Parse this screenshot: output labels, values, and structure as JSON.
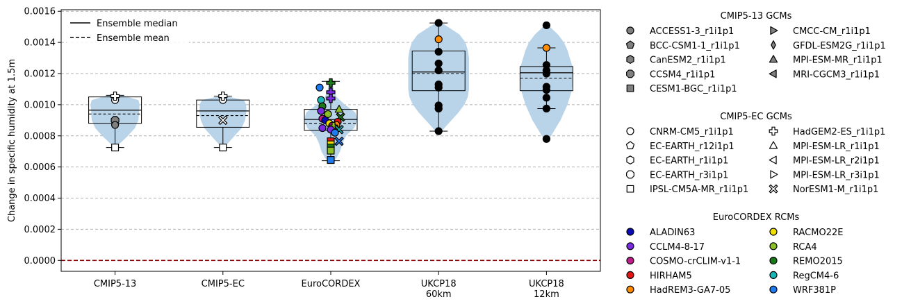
{
  "chart_data": {
    "type": "violin-box",
    "ylabel": "Change in specific humidity at 1.5m",
    "ylim": [
      -7e-05,
      0.00161
    ],
    "yticks": [
      "0.0000",
      "0.0002",
      "0.0004",
      "0.0006",
      "0.0008",
      "0.0010",
      "0.0012",
      "0.0014",
      "0.0016"
    ],
    "ytick_values": [
      0,
      0.0002,
      0.0004,
      0.0006,
      0.0008,
      0.001,
      0.0012,
      0.0014,
      0.0016
    ],
    "grid": "horizontal dashed",
    "zero_line_color": "#8b0000",
    "violin_color": "#b9d3e8",
    "categories": [
      {
        "label": [
          "CMIP5-13"
        ]
      },
      {
        "label": [
          "CMIP5-EC"
        ]
      },
      {
        "label": [
          "EuroCORDEX"
        ]
      },
      {
        "label": [
          "UKCP18",
          "60km"
        ]
      },
      {
        "label": [
          "UKCP18",
          "12km"
        ]
      }
    ],
    "groups": [
      {
        "name": "CMIP5-13",
        "box": {
          "whisker_low": 0.000725,
          "q1": 0.00088,
          "median": 0.000965,
          "q3": 0.00105,
          "whisker_high": 0.00106,
          "mean": 0.00094
        },
        "violin": [
          [
            0.00072,
            0.015
          ],
          [
            0.00075,
            0.08
          ],
          [
            0.0008,
            0.22
          ],
          [
            0.00085,
            0.34
          ],
          [
            0.0009,
            0.4
          ],
          [
            0.00095,
            0.41
          ],
          [
            0.001,
            0.42
          ],
          [
            0.00103,
            0.4
          ],
          [
            0.00106,
            0.12
          ],
          [
            0.00107,
            0.02
          ]
        ],
        "points": [
          {
            "model": "CNRM-CM5_r1i1p1",
            "marker": "circle",
            "fill": "#ffffff",
            "y": 0.00103
          },
          {
            "model": "HadGEM2-ES_r1i1p1",
            "marker": "plus",
            "fill": "#ffffff",
            "y": 0.001055
          },
          {
            "model": "CCSM4_r1i1p1",
            "marker": "octagon",
            "fill": "#808080",
            "y": 0.0009
          },
          {
            "model": "ACCESS1-3_r1i1p1",
            "marker": "circle",
            "fill": "#808080",
            "y": 0.00087
          },
          {
            "model": "IPSL-CM5A-MR_r1i1p1",
            "marker": "square",
            "fill": "#ffffff",
            "y": 0.000725
          }
        ]
      },
      {
        "name": "CMIP5-EC",
        "box": {
          "whisker_low": 0.000725,
          "q1": 0.000855,
          "median": 0.00096,
          "q3": 0.00103,
          "whisker_high": 0.001055,
          "mean": 0.00093
        },
        "violin": [
          [
            0.00072,
            0.015
          ],
          [
            0.00075,
            0.08
          ],
          [
            0.0008,
            0.2
          ],
          [
            0.00085,
            0.32
          ],
          [
            0.0009,
            0.38
          ],
          [
            0.00095,
            0.4
          ],
          [
            0.001,
            0.4
          ],
          [
            0.00103,
            0.36
          ],
          [
            0.00105,
            0.12
          ],
          [
            0.00106,
            0.02
          ]
        ],
        "points": [
          {
            "model": "CNRM-CM5_r1i1p1",
            "marker": "circle",
            "fill": "#ffffff",
            "y": 0.00103
          },
          {
            "model": "HadGEM2-ES_r1i1p1",
            "marker": "plus",
            "fill": "#ffffff",
            "y": 0.001055
          },
          {
            "model": "NorESM1-M_r1i1p1",
            "marker": "x",
            "fill": "#ffffff",
            "y": 0.0009
          },
          {
            "model": "IPSL-CM5A-MR_r1i1p1",
            "marker": "square",
            "fill": "#ffffff",
            "y": 0.000725
          }
        ]
      },
      {
        "name": "EuroCORDEX",
        "box": {
          "whisker_low": 0.00064,
          "q1": 0.000835,
          "median": 0.000905,
          "q3": 0.00097,
          "whisker_high": 0.00115,
          "mean": 0.00088
        },
        "violin": [
          [
            0.00062,
            0.02
          ],
          [
            0.00066,
            0.1
          ],
          [
            0.0007,
            0.16
          ],
          [
            0.00075,
            0.2
          ],
          [
            0.0008,
            0.26
          ],
          [
            0.00085,
            0.4
          ],
          [
            0.0009,
            0.46
          ],
          [
            0.00095,
            0.42
          ],
          [
            0.001,
            0.24
          ],
          [
            0.00105,
            0.1
          ],
          [
            0.0011,
            0.05
          ],
          [
            0.00116,
            0.02
          ]
        ],
        "points": [
          {
            "model": "WRF381P",
            "marker": "circle",
            "fill": "#1e7bf0",
            "y": 0.00111,
            "dx": -0.4
          },
          {
            "model": "REMO2015",
            "marker": "plus",
            "fill": "#1a7a1a",
            "y": 0.00114,
            "dx": 0.0
          },
          {
            "model": "MPI-ESM-LR_r1i1p1",
            "marker": "plus",
            "fill": "#7b2be2",
            "y": 0.00108,
            "dx": 0.0
          },
          {
            "model": "HadREM3-GA7-05",
            "marker": "plus",
            "fill": "#7b2be2",
            "y": 0.00104,
            "dx": 0.0
          },
          {
            "model": "RegCM4-6",
            "marker": "circle",
            "fill": "#18b8b8",
            "y": 0.00103,
            "dx": -0.35
          },
          {
            "model": "REMO2015",
            "marker": "circle",
            "fill": "#1a7a1a",
            "y": 0.00099,
            "dx": -0.3
          },
          {
            "model": "RCA4",
            "marker": "triangle",
            "fill": "#8cbf26",
            "y": 0.00097,
            "dx": 0.3
          },
          {
            "model": "CCLM4-8-17",
            "marker": "circle",
            "fill": "#7b2be2",
            "y": 0.00096,
            "dx": -0.35
          },
          {
            "model": "RCA4",
            "marker": "circle",
            "fill": "#8cbf26",
            "y": 0.00094,
            "dx": -0.1
          },
          {
            "model": "REMO2015",
            "marker": "x",
            "fill": "#1a7a1a",
            "y": 0.00092,
            "dx": 0.35
          },
          {
            "model": "COSMO-crCLIM-v1-1",
            "marker": "circle",
            "fill": "#c01c8c",
            "y": 0.00091,
            "dx": -0.3
          },
          {
            "model": "ALADIN63",
            "marker": "circle",
            "fill": "#0a0ab5",
            "y": 0.0009,
            "dx": -0.2
          },
          {
            "model": "HIRHAM5",
            "marker": "circle",
            "fill": "#e81414",
            "y": 0.00089,
            "dx": 0.25
          },
          {
            "model": "RACMO22E",
            "marker": "circle",
            "fill": "#f0e000",
            "y": 0.00088,
            "dx": -0.05
          },
          {
            "model": "HadREM3-GA7-05",
            "marker": "circle",
            "fill": "#ff8c00",
            "y": 0.00087,
            "dx": 0.2
          },
          {
            "model": "COSMO-crCLIM-v1-1",
            "marker": "circle",
            "fill": "#c01c8c",
            "y": 0.000865,
            "dx": 0.05
          },
          {
            "model": "CCLM4-8-17",
            "marker": "circle",
            "fill": "#7b2be2",
            "y": 0.00085,
            "dx": -0.3
          },
          {
            "model": "RCA4",
            "marker": "plus",
            "fill": "#8cbf26",
            "y": 0.00086,
            "dx": 0.1
          },
          {
            "model": "CCLM4-8-17",
            "marker": "circle",
            "fill": "#7b2be2",
            "y": 0.00084,
            "dx": 0.0
          },
          {
            "model": "RegCM4-6",
            "marker": "x",
            "fill": "#18b8b8",
            "y": 0.00084,
            "dx": 0.3
          },
          {
            "model": "WRF381P",
            "marker": "circle",
            "fill": "#1e7bf0",
            "y": 0.00082,
            "dx": 0.15
          },
          {
            "model": "HIRHAM5",
            "marker": "square",
            "fill": "#e81414",
            "y": 0.000765,
            "dx": 0.0
          },
          {
            "model": "WRF381P",
            "marker": "x",
            "fill": "#1e7bf0",
            "y": 0.000765,
            "dx": 0.3
          },
          {
            "model": "RACMO22E",
            "marker": "square",
            "fill": "#f0e000",
            "y": 0.000745,
            "dx": 0.0
          },
          {
            "model": "REMO2015",
            "marker": "square",
            "fill": "#1a7a1a",
            "y": 0.000725,
            "dx": 0.0
          },
          {
            "model": "RCA4",
            "marker": "square",
            "fill": "#8cbf26",
            "y": 0.000705,
            "dx": 0.0
          },
          {
            "model": "WRF381P",
            "marker": "square",
            "fill": "#1e7bf0",
            "y": 0.000645,
            "dx": 0.0
          }
        ]
      },
      {
        "name": "UKCP18 60km",
        "box": {
          "whisker_low": 0.00083,
          "q1": 0.00109,
          "median": 0.00121,
          "q3": 0.001345,
          "whisker_high": 0.001525,
          "mean": 0.0012
        },
        "violin": [
          [
            0.00081,
            0.02
          ],
          [
            0.00085,
            0.1
          ],
          [
            0.0009,
            0.22
          ],
          [
            0.00095,
            0.34
          ],
          [
            0.001,
            0.44
          ],
          [
            0.00105,
            0.5
          ],
          [
            0.0011,
            0.52
          ],
          [
            0.00115,
            0.52
          ],
          [
            0.0012,
            0.52
          ],
          [
            0.00125,
            0.52
          ],
          [
            0.0013,
            0.52
          ],
          [
            0.00135,
            0.5
          ],
          [
            0.0014,
            0.46
          ],
          [
            0.00145,
            0.36
          ],
          [
            0.0015,
            0.16
          ],
          [
            0.00153,
            0.03
          ]
        ],
        "points": [
          {
            "model": "",
            "marker": "circle",
            "fill": "#000000",
            "y": 0.001525
          },
          {
            "model": "",
            "marker": "circle",
            "fill": "#ff8c00",
            "y": 0.00142
          },
          {
            "model": "",
            "marker": "circle",
            "fill": "#000000",
            "y": 0.00134
          },
          {
            "model": "",
            "marker": "circle",
            "fill": "#000000",
            "y": 0.001265
          },
          {
            "model": "",
            "marker": "circle",
            "fill": "#000000",
            "y": 0.00122
          },
          {
            "model": "",
            "marker": "circle",
            "fill": "#000000",
            "y": 0.00113
          },
          {
            "model": "",
            "marker": "circle",
            "fill": "#000000",
            "y": 0.00111
          },
          {
            "model": "",
            "marker": "circle",
            "fill": "#000000",
            "y": 0.000995
          },
          {
            "model": "",
            "marker": "circle",
            "fill": "#000000",
            "y": 0.000975
          },
          {
            "model": "",
            "marker": "circle",
            "fill": "#000000",
            "y": 0.00083
          }
        ]
      },
      {
        "name": "UKCP18 12km",
        "box": {
          "whisker_low": 0.000975,
          "q1": 0.00109,
          "median": 0.001205,
          "q3": 0.001245,
          "whisker_high": 0.001365,
          "mean": 0.00117
        },
        "violin": [
          [
            0.00077,
            0.02
          ],
          [
            0.0008,
            0.08
          ],
          [
            0.00085,
            0.16
          ],
          [
            0.0009,
            0.24
          ],
          [
            0.00095,
            0.3
          ],
          [
            0.001,
            0.36
          ],
          [
            0.00105,
            0.4
          ],
          [
            0.0011,
            0.44
          ],
          [
            0.00115,
            0.46
          ],
          [
            0.0012,
            0.46
          ],
          [
            0.00125,
            0.44
          ],
          [
            0.0013,
            0.4
          ],
          [
            0.00135,
            0.36
          ],
          [
            0.0014,
            0.3
          ],
          [
            0.00145,
            0.2
          ],
          [
            0.0015,
            0.06
          ],
          [
            0.00152,
            0.015
          ]
        ],
        "points": [
          {
            "model": "",
            "marker": "circle",
            "fill": "#000000",
            "y": 0.00151
          },
          {
            "model": "",
            "marker": "circle",
            "fill": "#ff8c00",
            "y": 0.001365
          },
          {
            "model": "",
            "marker": "circle",
            "fill": "#000000",
            "y": 0.001255
          },
          {
            "model": "",
            "marker": "circle",
            "fill": "#000000",
            "y": 0.00122
          },
          {
            "model": "",
            "marker": "circle",
            "fill": "#000000",
            "y": 0.0012
          },
          {
            "model": "",
            "marker": "circle",
            "fill": "#000000",
            "y": 0.001115
          },
          {
            "model": "",
            "marker": "circle",
            "fill": "#000000",
            "y": 0.001095
          },
          {
            "model": "",
            "marker": "circle",
            "fill": "#000000",
            "y": 0.001045
          },
          {
            "model": "",
            "marker": "circle",
            "fill": "#000000",
            "y": 0.000975
          },
          {
            "model": "",
            "marker": "circle",
            "fill": "#000000",
            "y": 0.00078
          }
        ]
      }
    ],
    "plot_legend": [
      {
        "label": "Ensemble median",
        "style": "solid"
      },
      {
        "label": "Ensemble mean",
        "style": "dashed"
      }
    ],
    "legend_sections": [
      {
        "title": "CMIP5-13 GCMs",
        "columns": [
          [
            {
              "label": "ACCESS1-3_r1i1p1",
              "marker": "circle",
              "fill": "#808080"
            },
            {
              "label": "BCC-CSM1-1_r1i1p1",
              "marker": "pentagon",
              "fill": "#808080"
            },
            {
              "label": "CanESM2_r1i1p1",
              "marker": "hexagon",
              "fill": "#808080"
            },
            {
              "label": "CCSM4_r1i1p1",
              "marker": "octagon",
              "fill": "#808080"
            },
            {
              "label": "CESM1-BGC_r1i1p1",
              "marker": "square",
              "fill": "#808080"
            }
          ],
          [
            {
              "label": "CMCC-CM_r1i1p1",
              "marker": "triangle-right",
              "fill": "#808080"
            },
            {
              "label": "GFDL-ESM2G_r1i1p1",
              "marker": "thin-diamond",
              "fill": "#808080"
            },
            {
              "label": "MPI-ESM-MR_r1i1p1",
              "marker": "triangle",
              "fill": "#808080"
            },
            {
              "label": "MRI-CGCM3_r1i1p1",
              "marker": "triangle-left",
              "fill": "#808080"
            }
          ]
        ]
      },
      {
        "title": "CMIP5-EC GCMs",
        "columns": [
          [
            {
              "label": "CNRM-CM5_r1i1p1",
              "marker": "circle",
              "fill": "#ffffff"
            },
            {
              "label": "EC-EARTH_r12i1p1",
              "marker": "pentagon",
              "fill": "#ffffff"
            },
            {
              "label": "EC-EARTH_r1i1p1",
              "marker": "hexagon",
              "fill": "#ffffff"
            },
            {
              "label": "EC-EARTH_r3i1p1",
              "marker": "octagon",
              "fill": "#ffffff"
            },
            {
              "label": "IPSL-CM5A-MR_r1i1p1",
              "marker": "square",
              "fill": "#ffffff"
            }
          ],
          [
            {
              "label": "HadGEM2-ES_r1i1p1",
              "marker": "plus",
              "fill": "#ffffff"
            },
            {
              "label": "MPI-ESM-LR_r1i1p1",
              "marker": "triangle",
              "fill": "#ffffff"
            },
            {
              "label": "MPI-ESM-LR_r2i1p1",
              "marker": "triangle-left",
              "fill": "#ffffff"
            },
            {
              "label": "MPI-ESM-LR_r3i1p1",
              "marker": "triangle-right",
              "fill": "#ffffff"
            },
            {
              "label": "NorESM1-M_r1i1p1",
              "marker": "x",
              "fill": "#ffffff"
            }
          ]
        ]
      },
      {
        "title": "EuroCORDEX RCMs",
        "columns": [
          [
            {
              "label": "ALADIN63",
              "marker": "circle",
              "fill": "#0a0ab5"
            },
            {
              "label": "CCLM4-8-17",
              "marker": "circle",
              "fill": "#7b2be2"
            },
            {
              "label": "COSMO-crCLIM-v1-1",
              "marker": "circle",
              "fill": "#c01c8c"
            },
            {
              "label": "HIRHAM5",
              "marker": "circle",
              "fill": "#e81414"
            },
            {
              "label": "HadREM3-GA7-05",
              "marker": "circle",
              "fill": "#ff8c00"
            }
          ],
          [
            {
              "label": "RACMO22E",
              "marker": "circle",
              "fill": "#f0e000"
            },
            {
              "label": "RCA4",
              "marker": "circle",
              "fill": "#8cbf26"
            },
            {
              "label": "REMO2015",
              "marker": "circle",
              "fill": "#1a7a1a"
            },
            {
              "label": "RegCM4-6",
              "marker": "circle",
              "fill": "#18b8b8"
            },
            {
              "label": "WRF381P",
              "marker": "circle",
              "fill": "#1e7bf0"
            }
          ]
        ]
      }
    ]
  }
}
